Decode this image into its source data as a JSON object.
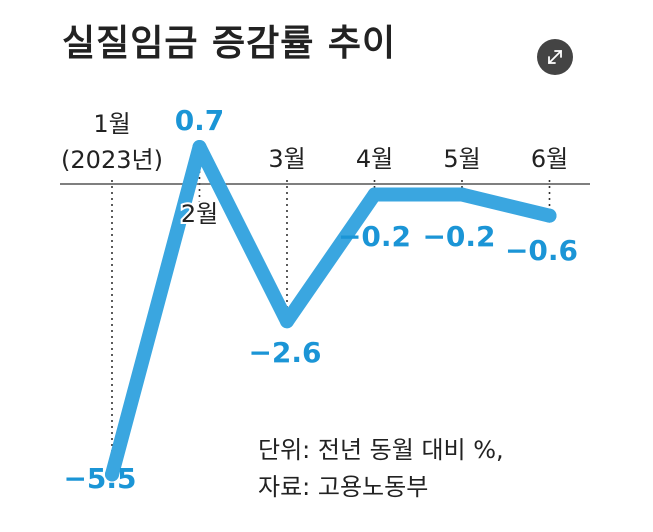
{
  "title": "실질임금 증감률 추이",
  "icons": {
    "expand": "expand-icon"
  },
  "colors": {
    "line": "#3aa6e0",
    "value_label": "#1b95d6",
    "text": "#222222",
    "axis": "#555555"
  },
  "source": {
    "unit": "단위: 전년 동월 대비 %,",
    "provider": "자료: 고용노동부"
  },
  "chart_data": {
    "type": "line",
    "title": "실질임금 증감률 추이",
    "categories": [
      "1월",
      "2월",
      "3월",
      "4월",
      "5월",
      "6월"
    ],
    "category_sub": [
      "(2023년)",
      "",
      "",
      "",
      "",
      ""
    ],
    "values": [
      -5.5,
      0.7,
      -2.6,
      -0.2,
      -0.2,
      -0.6
    ],
    "value_labels": [
      "−5.5",
      "0.7",
      "−2.6",
      "−0.2",
      "−0.2",
      "−0.6"
    ],
    "unit": "%",
    "ylim": [
      -5.5,
      0.7
    ],
    "zero_line": true,
    "grid": false,
    "xlabel": "",
    "ylabel": ""
  }
}
